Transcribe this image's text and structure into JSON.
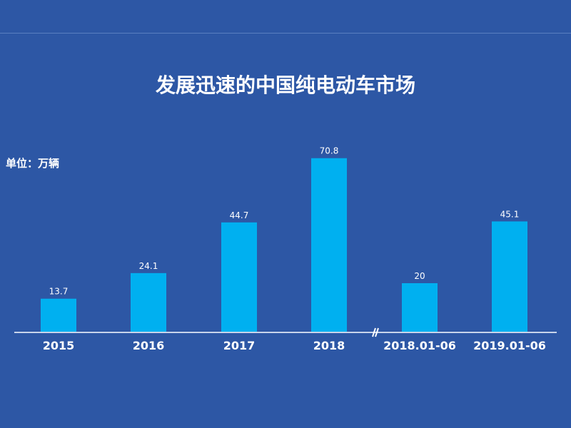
{
  "chart_data": {
    "type": "bar",
    "title": "发展迅速的中国纯电动车市场",
    "unit_label": "单位：万辆",
    "categories": [
      "2015",
      "2016",
      "2017",
      "2018",
      "2018.01-06",
      "2019.01-06"
    ],
    "values": [
      13.7,
      24.1,
      44.7,
      70.8,
      20,
      45.1
    ],
    "data_labels": [
      "13.7",
      "24.1",
      "44.7",
      "70.8",
      "20",
      "45.1"
    ],
    "axis_break_after": "2018",
    "ylim": [
      0,
      75
    ],
    "grid": false,
    "legend": "none"
  },
  "colors": {
    "background": "#2d57a5",
    "bar": "#00b0f0",
    "axis": "#c8d4ea",
    "text": "#ffffff"
  }
}
